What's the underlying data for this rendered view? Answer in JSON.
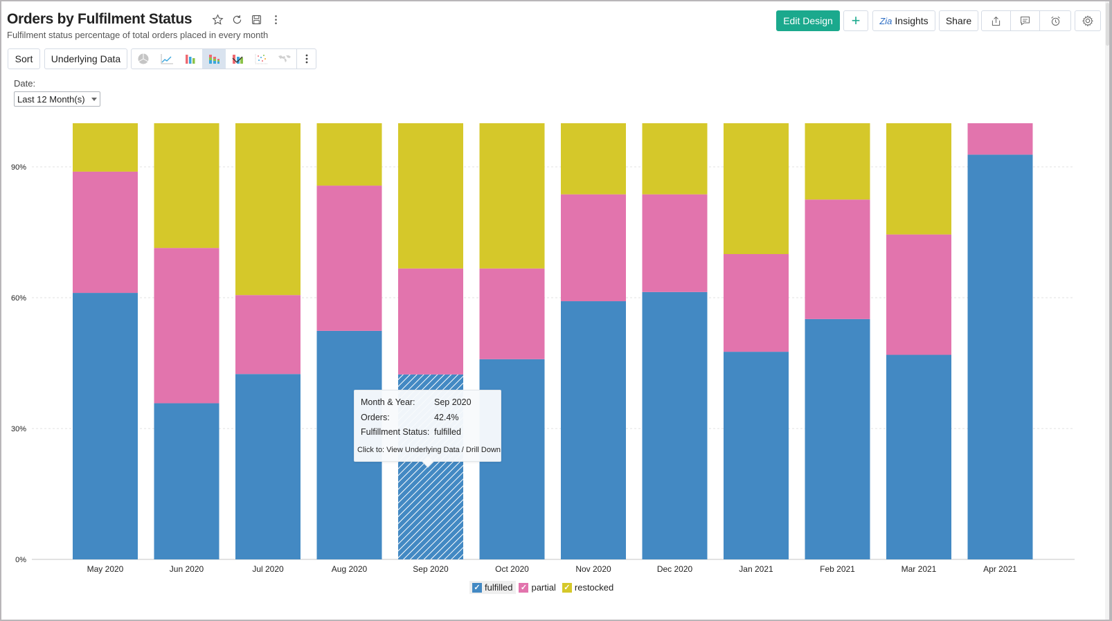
{
  "header": {
    "title": "Orders by Fulfilment Status",
    "subtitle": "Fulfilment status percentage of total orders placed in every month",
    "title_icons": [
      "star-icon",
      "refresh-icon",
      "save-icon",
      "more-vertical-icon"
    ]
  },
  "actions": {
    "edit_design": "Edit Design",
    "add": "+",
    "insights_logo": "Zia",
    "insights": "Insights",
    "share": "Share",
    "icon_group": [
      "export-icon",
      "comment-icon",
      "alarm-icon"
    ],
    "settings": "settings-icon"
  },
  "toolbar": {
    "sort": "Sort",
    "underlying_data": "Underlying Data",
    "chart_types": [
      "pie",
      "line",
      "bar",
      "stacked-bar",
      "combination",
      "scatter",
      "map"
    ],
    "active_chart_type": "stacked-bar"
  },
  "filter": {
    "label": "Date:",
    "value": "Last 12 Month(s)"
  },
  "colors": {
    "fulfilled": "#4389c3",
    "partial": "#e274ad",
    "restocked": "#d5c82a",
    "accent": "#1ba98d"
  },
  "tooltip": {
    "rows": [
      {
        "key": "Month & Year:",
        "value": "Sep 2020"
      },
      {
        "key": "Orders:",
        "value": "42.4%"
      },
      {
        "key": "Fulfillment Status:",
        "value": "fulfilled"
      }
    ],
    "footer": "Click to: View Underlying Data / Drill Down",
    "hovered": {
      "category": "Sep 2020",
      "series": "fulfilled"
    }
  },
  "chart_data": {
    "type": "bar",
    "stacked": "percent",
    "title": "Orders by Fulfilment Status",
    "xlabel": "",
    "ylabel": "",
    "ylim": [
      0,
      100
    ],
    "yticks": [
      0,
      30,
      60,
      90
    ],
    "ytick_labels": [
      "0%",
      "30%",
      "60%",
      "90%"
    ],
    "grid": true,
    "legend": "bottom-center",
    "categories": [
      "May 2020",
      "Jun 2020",
      "Jul 2020",
      "Aug 2020",
      "Sep 2020",
      "Oct 2020",
      "Nov 2020",
      "Dec 2020",
      "Jan 2021",
      "Feb 2021",
      "Mar 2021",
      "Apr 2021"
    ],
    "series": [
      {
        "name": "fulfilled",
        "values": [
          61.1,
          35.8,
          42.5,
          52.4,
          42.4,
          45.9,
          59.2,
          61.3,
          47.6,
          55.1,
          46.9,
          92.8
        ]
      },
      {
        "name": "partial",
        "values": [
          27.8,
          35.6,
          18.1,
          33.3,
          24.3,
          20.8,
          24.5,
          22.4,
          22.4,
          27.4,
          27.6,
          7.2
        ]
      },
      {
        "name": "restocked",
        "values": [
          11.1,
          28.6,
          39.4,
          14.3,
          33.3,
          33.3,
          16.3,
          16.3,
          30.0,
          17.5,
          25.5,
          0
        ]
      }
    ]
  }
}
